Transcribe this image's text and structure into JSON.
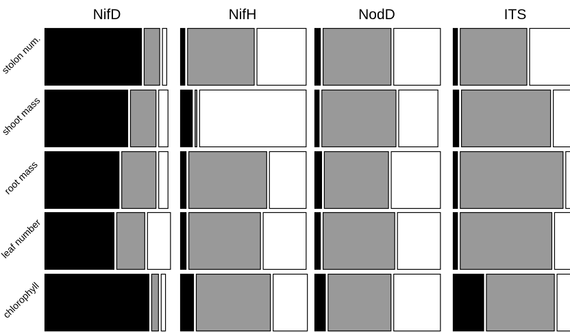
{
  "chart_data": {
    "type": "bar",
    "subtype": "stacked-proportion-grid",
    "columns": [
      "NifD",
      "NifH",
      "NodD",
      "ITS"
    ],
    "rows": [
      "stolon num.",
      "shoot mass",
      "root mass",
      "leaf number",
      "chlorophyll"
    ],
    "series": [
      {
        "color": "#000000"
      },
      {
        "color": "#999999"
      },
      {
        "color": "#ffffff"
      }
    ],
    "values": [
      [
        [
          0.78,
          0.13,
          0.04
        ],
        [
          0.04,
          0.54,
          0.4
        ],
        [
          0.05,
          0.55,
          0.38
        ],
        [
          0.04,
          0.54,
          0.42
        ]
      ],
      [
        [
          0.67,
          0.21,
          0.08
        ],
        [
          0.1,
          0.02,
          0.86
        ],
        [
          0.04,
          0.6,
          0.32
        ],
        [
          0.05,
          0.72,
          0.23
        ]
      ],
      [
        [
          0.6,
          0.28,
          0.08
        ],
        [
          0.05,
          0.63,
          0.3
        ],
        [
          0.06,
          0.52,
          0.4
        ],
        [
          0.04,
          0.83,
          0.13
        ]
      ],
      [
        [
          0.56,
          0.23,
          0.19
        ],
        [
          0.05,
          0.58,
          0.35
        ],
        [
          0.05,
          0.58,
          0.35
        ],
        [
          0.04,
          0.74,
          0.22
        ]
      ],
      [
        [
          0.84,
          0.06,
          0.04
        ],
        [
          0.11,
          0.6,
          0.28
        ],
        [
          0.09,
          0.51,
          0.38
        ],
        [
          0.25,
          0.55,
          0.2
        ]
      ]
    ],
    "grid": false,
    "legend": "none"
  }
}
